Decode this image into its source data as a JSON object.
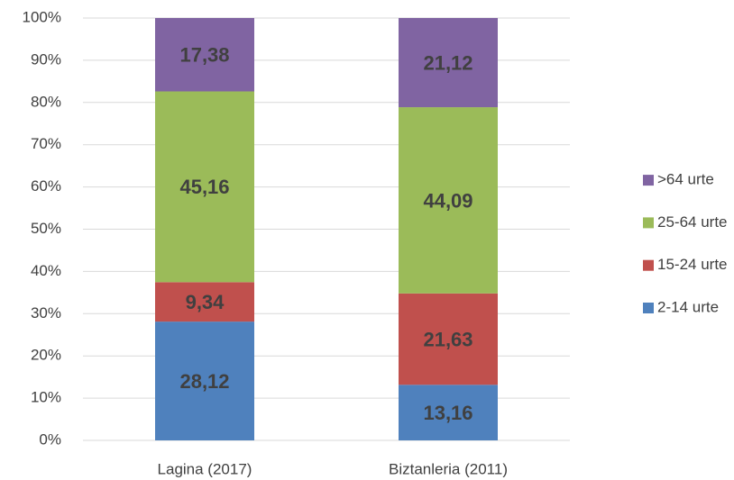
{
  "chart_data": {
    "type": "stacked_bar",
    "categories": [
      "Lagina (2017)",
      "Biztanleria (2011)"
    ],
    "series": [
      {
        "name": "2-14 urte",
        "color": "#4f81bd",
        "values": [
          28.12,
          13.16
        ],
        "value_labels": [
          "28,12",
          "13,16"
        ]
      },
      {
        "name": "15-24 urte",
        "color": "#c0504d",
        "values": [
          9.34,
          21.63
        ],
        "value_labels": [
          "9,34",
          "21,63"
        ]
      },
      {
        "name": "25-64 urte",
        "color": "#9bbb59",
        "values": [
          45.16,
          44.09
        ],
        "value_labels": [
          "45,16",
          "44,09"
        ]
      },
      {
        "name": ">64 urte",
        "color": "#8064a2",
        "values": [
          17.38,
          21.12
        ],
        "value_labels": [
          "17,38",
          "21,12"
        ]
      }
    ],
    "ylim": [
      0,
      100
    ],
    "yticks": [
      {
        "value": 0,
        "label": "0%"
      },
      {
        "value": 10,
        "label": "10%"
      },
      {
        "value": 20,
        "label": "20%"
      },
      {
        "value": 30,
        "label": "30%"
      },
      {
        "value": 40,
        "label": "40%"
      },
      {
        "value": 50,
        "label": "50%"
      },
      {
        "value": 60,
        "label": "60%"
      },
      {
        "value": 70,
        "label": "70%"
      },
      {
        "value": 80,
        "label": "80%"
      },
      {
        "value": 90,
        "label": "90%"
      },
      {
        "value": 100,
        "label": "100%"
      }
    ],
    "grid": true,
    "legend": "right"
  }
}
